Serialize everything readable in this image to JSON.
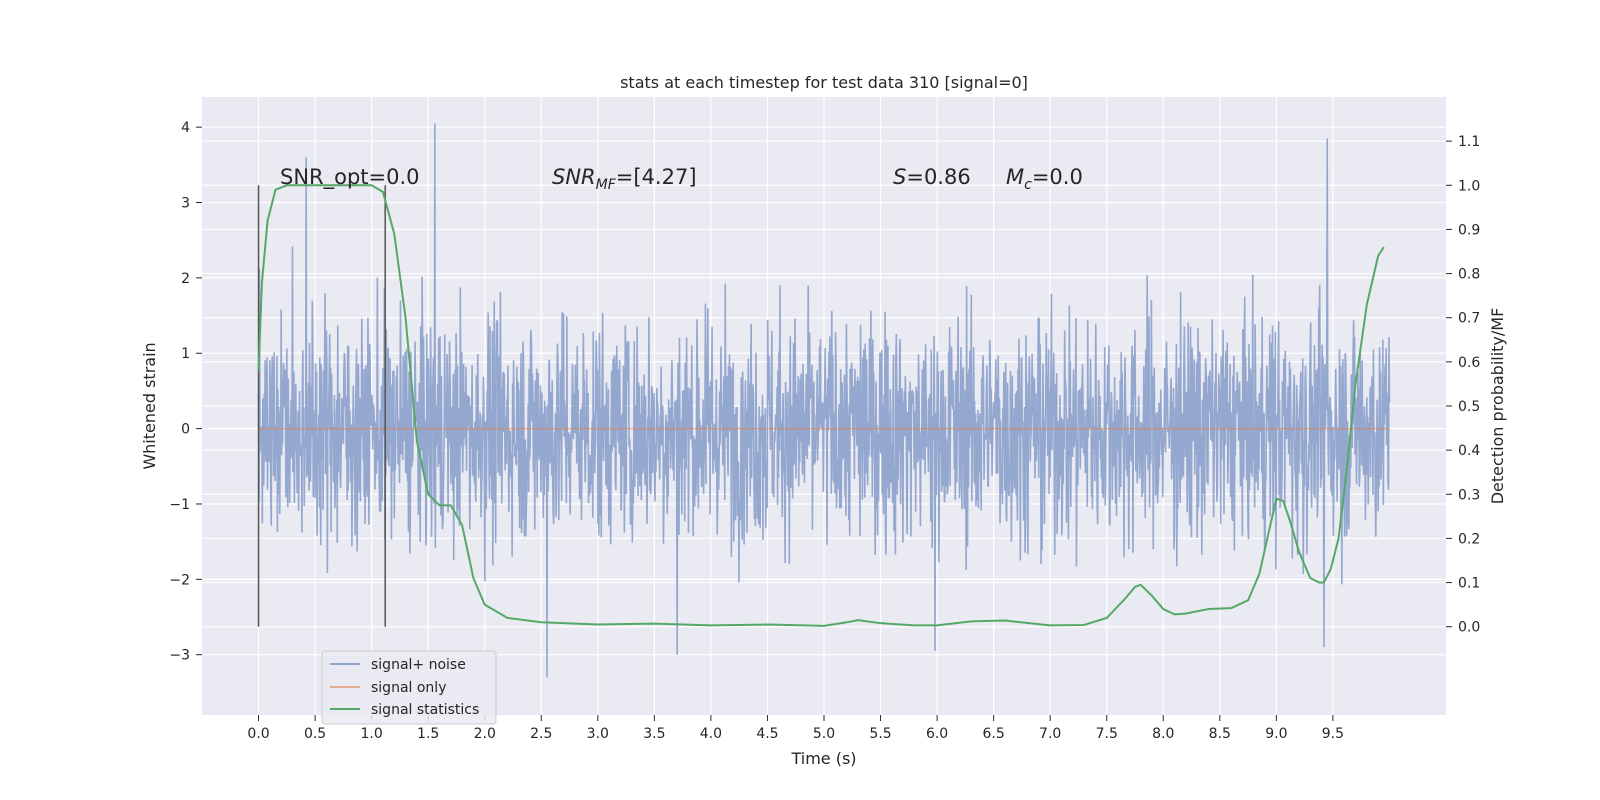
{
  "chart_data": {
    "type": "line",
    "title": "stats at each timestep for test data 310 [signal=0]",
    "xlabel": "Time (s)",
    "ylabel": "Whitened strain",
    "ylabel_right": "Detection probability/MF",
    "xlim": [
      -0.5,
      10.5
    ],
    "ylim": [
      -3.8,
      4.4
    ],
    "ylim_right": [
      -0.2,
      1.2
    ],
    "xticks": [
      "0.0",
      "0.5",
      "1.0",
      "1.5",
      "2.0",
      "2.5",
      "3.0",
      "3.5",
      "4.0",
      "4.5",
      "5.0",
      "5.5",
      "6.0",
      "6.5",
      "7.0",
      "7.5",
      "8.0",
      "8.5",
      "9.0",
      "9.5"
    ],
    "yticks": [
      "−3",
      "−2",
      "−1",
      "0",
      "1",
      "2",
      "3",
      "4"
    ],
    "yticks_right": [
      "0.0",
      "0.1",
      "0.2",
      "0.3",
      "0.4",
      "0.5",
      "0.6",
      "0.7",
      "0.8",
      "0.9",
      "1.0",
      "1.1"
    ],
    "grid": true,
    "legend_position": "lower-left",
    "annotations": {
      "snr_opt": "SNR_opt=0.0",
      "snr_mf_main": "SNR",
      "snr_mf_sub": "MF",
      "snr_mf_value": "=[4.27]",
      "s_main": "S",
      "s_value": "=0.86",
      "mc_main": "M",
      "mc_sub": "c",
      "mc_value": "=0.0"
    },
    "series": [
      {
        "name": "signal+ noise",
        "color": "#8fa3cc",
        "x_range": [
          0.0,
          10.0
        ],
        "band_typical": [
          -1.5,
          1.5
        ],
        "max_value": 4.05,
        "min_value": -3.3,
        "peaks": [
          [
            0.42,
            3.6
          ],
          [
            1.56,
            4.05
          ],
          [
            9.45,
            3.85
          ],
          [
            2.55,
            -3.3
          ],
          [
            3.7,
            -3.0
          ],
          [
            9.42,
            -2.9
          ],
          [
            5.98,
            -2.95
          ]
        ]
      },
      {
        "name": "signal only",
        "color": "#dd8452",
        "x": [
          0.0,
          10.0
        ],
        "values": [
          0.0,
          0.0
        ]
      },
      {
        "name": "signal statistics",
        "color": "#55a868",
        "axis": "right",
        "x": [
          0.0,
          0.03,
          0.08,
          0.15,
          0.25,
          0.4,
          0.6,
          0.8,
          1.0,
          1.1,
          1.2,
          1.3,
          1.4,
          1.5,
          1.6,
          1.65,
          1.7,
          1.8,
          1.9,
          2.0,
          2.2,
          2.5,
          3.0,
          3.5,
          4.0,
          4.5,
          5.0,
          5.2,
          5.3,
          5.5,
          5.8,
          6.0,
          6.3,
          6.6,
          7.0,
          7.3,
          7.5,
          7.65,
          7.75,
          7.8,
          7.9,
          8.0,
          8.1,
          8.2,
          8.4,
          8.6,
          8.75,
          8.85,
          8.92,
          9.0,
          9.06,
          9.12,
          9.2,
          9.3,
          9.38,
          9.42,
          9.48,
          9.55,
          9.62,
          9.7,
          9.8,
          9.9,
          9.95
        ],
        "values": [
          0.58,
          0.78,
          0.92,
          0.99,
          1.0,
          1.0,
          1.0,
          1.0,
          1.0,
          0.985,
          0.89,
          0.7,
          0.42,
          0.3,
          0.275,
          0.275,
          0.275,
          0.23,
          0.11,
          0.05,
          0.02,
          0.01,
          0.005,
          0.007,
          0.003,
          0.005,
          0.002,
          0.01,
          0.015,
          0.008,
          0.003,
          0.003,
          0.012,
          0.014,
          0.003,
          0.004,
          0.02,
          0.06,
          0.09,
          0.095,
          0.07,
          0.04,
          0.028,
          0.03,
          0.04,
          0.042,
          0.06,
          0.12,
          0.2,
          0.29,
          0.285,
          0.24,
          0.17,
          0.11,
          0.1,
          0.1,
          0.13,
          0.2,
          0.35,
          0.55,
          0.73,
          0.84,
          0.86
        ]
      }
    ],
    "vlines": [
      0.0,
      1.12
    ]
  }
}
